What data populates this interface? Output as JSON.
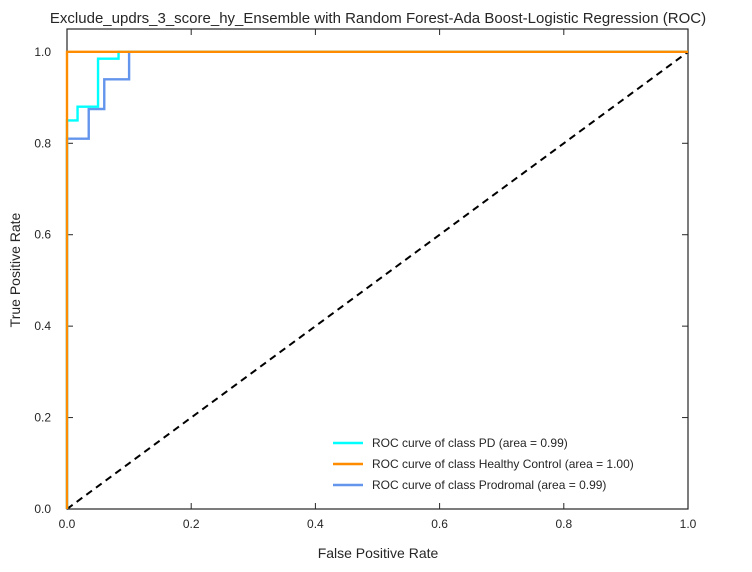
{
  "chart_data": {
    "type": "line",
    "title": "Exclude_updrs_3_score_hy_Ensemble with Random Forest-Ada Boost-Logistic Regression (ROC)",
    "xlabel": "False Positive Rate",
    "ylabel": "True Positive Rate",
    "xlim": [
      0.0,
      1.0
    ],
    "ylim": [
      0.0,
      1.05
    ],
    "x_ticks": [
      "0.0",
      "0.2",
      "0.4",
      "0.6",
      "0.8",
      "1.0"
    ],
    "y_ticks": [
      "0.0",
      "0.2",
      "0.4",
      "0.6",
      "0.8",
      "1.0"
    ],
    "grid": false,
    "legend_position": "lower-right",
    "series": [
      {
        "name": "ROC curve of class PD (area = 0.99)",
        "color": "#00ffff",
        "x": [
          0.0,
          0.0,
          0.0,
          0.017,
          0.017,
          0.05,
          0.05,
          0.083,
          0.083,
          1.0
        ],
        "y": [
          0.0,
          0.85,
          0.85,
          0.85,
          0.88,
          0.88,
          0.985,
          0.985,
          1.0,
          1.0
        ]
      },
      {
        "name": "ROC curve of class Healthy Control (area = 1.00)",
        "color": "#ff8c00",
        "x": [
          0.0,
          0.0,
          1.0
        ],
        "y": [
          0.0,
          1.0,
          1.0
        ]
      },
      {
        "name": "ROC curve of class Prodromal (area = 0.99)",
        "color": "#6495ed",
        "x": [
          0.0,
          0.0,
          0.035,
          0.035,
          0.06,
          0.06,
          0.1,
          0.1,
          1.0
        ],
        "y": [
          0.0,
          0.81,
          0.81,
          0.875,
          0.875,
          0.94,
          0.94,
          1.0,
          1.0
        ]
      }
    ],
    "reference_line": {
      "x": [
        0.0,
        1.0
      ],
      "y": [
        0.0,
        1.0
      ],
      "color": "#000000",
      "style": "dashed"
    }
  }
}
